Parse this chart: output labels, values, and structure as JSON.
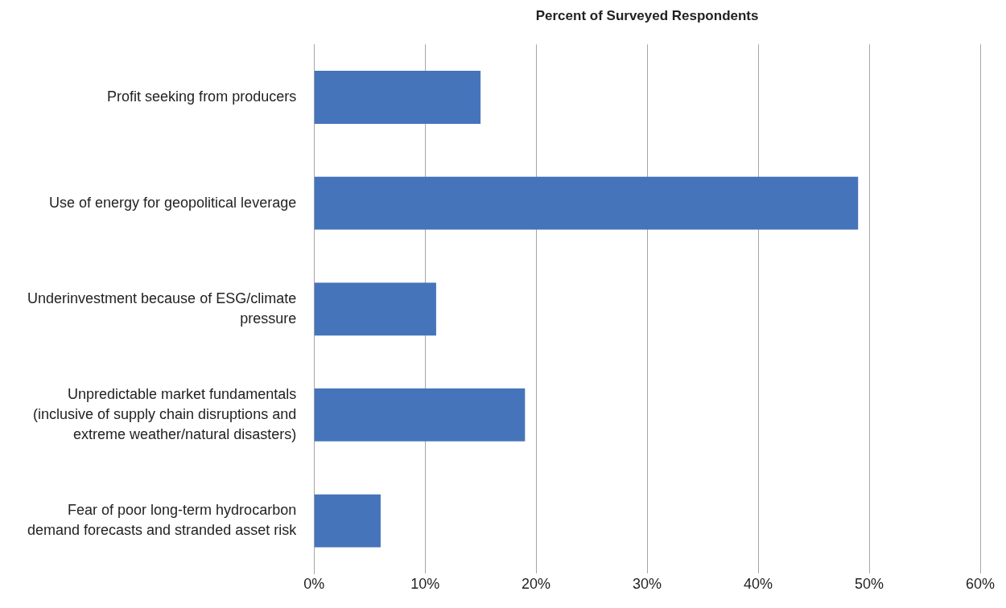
{
  "chart_data": {
    "type": "bar",
    "orientation": "horizontal",
    "xlabel": "Percent of Surveyed Respondents",
    "categories": [
      "Profit seeking from producers",
      "Use of energy for geopolitical leverage",
      "Underinvestment because of ESG/climate pressure",
      "Unpredictable market fundamentals (inclusive of supply chain disruptions and extreme weather/natural disasters)",
      "Fear of poor long-term hydrocarbon demand forecasts and stranded asset risk"
    ],
    "values": [
      15,
      49,
      11,
      19,
      6
    ],
    "color": "#4674ba",
    "xlim": [
      0,
      60
    ],
    "xticks": [
      {
        "value": 0,
        "label": "0%"
      },
      {
        "value": 10,
        "label": "10%"
      },
      {
        "value": 20,
        "label": "20%"
      },
      {
        "value": 30,
        "label": "30%"
      },
      {
        "value": 40,
        "label": "40%"
      },
      {
        "value": 50,
        "label": "50%"
      },
      {
        "value": 60,
        "label": "60%"
      }
    ],
    "grid": "x",
    "legend": false
  }
}
